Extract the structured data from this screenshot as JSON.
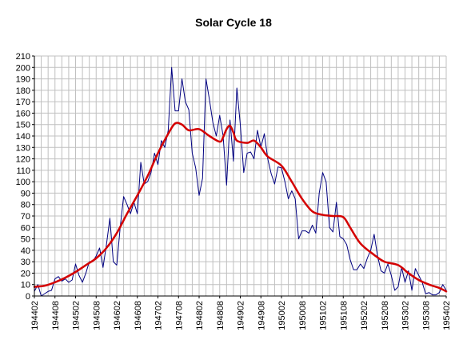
{
  "chart_data": {
    "type": "line",
    "title": "Solar Cycle 18",
    "xlabel": "",
    "ylabel": "",
    "ylim": [
      0,
      210
    ],
    "y_ticks": [
      0,
      10,
      20,
      30,
      40,
      50,
      60,
      70,
      80,
      90,
      100,
      110,
      120,
      130,
      140,
      150,
      160,
      170,
      180,
      190,
      200,
      210
    ],
    "x_ticks": [
      "194402",
      "194408",
      "194502",
      "194508",
      "194602",
      "194608",
      "194702",
      "194708",
      "194802",
      "194808",
      "194902",
      "194908",
      "195002",
      "195008",
      "195102",
      "195108",
      "195202",
      "195208",
      "195302",
      "195308",
      "195402"
    ],
    "grid": "on",
    "legend": "none",
    "colors": {
      "monthly": "#000080",
      "smoothed": "#d40000",
      "grid": "#c0c0c0"
    },
    "series": [
      {
        "key": "monthly",
        "points": [
          [
            "194402",
            4
          ],
          [
            "194403",
            10
          ],
          [
            "194404",
            0
          ],
          [
            "194405",
            2
          ],
          [
            "194406",
            4
          ],
          [
            "194407",
            5
          ],
          [
            "194408",
            15
          ],
          [
            "194409",
            17
          ],
          [
            "194410",
            13
          ],
          [
            "194411",
            15
          ],
          [
            "194412",
            12
          ],
          [
            "194501",
            14
          ],
          [
            "194502",
            28
          ],
          [
            "194503",
            18
          ],
          [
            "194504",
            12
          ],
          [
            "194505",
            20
          ],
          [
            "194506",
            30
          ],
          [
            "194507",
            30
          ],
          [
            "194508",
            35
          ],
          [
            "194509",
            42
          ],
          [
            "194510",
            25
          ],
          [
            "194511",
            45
          ],
          [
            "194512",
            68
          ],
          [
            "194601",
            30
          ],
          [
            "194602",
            27
          ],
          [
            "194603",
            60
          ],
          [
            "194604",
            87
          ],
          [
            "194605",
            80
          ],
          [
            "194606",
            72
          ],
          [
            "194607",
            82
          ],
          [
            "194608",
            72
          ],
          [
            "194609",
            117
          ],
          [
            "194610",
            98
          ],
          [
            "194611",
            100
          ],
          [
            "194612",
            108
          ],
          [
            "194701",
            125
          ],
          [
            "194702",
            115
          ],
          [
            "194703",
            136
          ],
          [
            "194704",
            130
          ],
          [
            "194705",
            145
          ],
          [
            "194706",
            200
          ],
          [
            "194707",
            162
          ],
          [
            "194708",
            162
          ],
          [
            "194709",
            190
          ],
          [
            "194710",
            170
          ],
          [
            "194711",
            163
          ],
          [
            "194712",
            125
          ],
          [
            "194801",
            112
          ],
          [
            "194802",
            88
          ],
          [
            "194803",
            103
          ],
          [
            "194804",
            190
          ],
          [
            "194805",
            172
          ],
          [
            "194806",
            152
          ],
          [
            "194807",
            140
          ],
          [
            "194808",
            158
          ],
          [
            "194809",
            140
          ],
          [
            "194810",
            97
          ],
          [
            "194811",
            154
          ],
          [
            "194812",
            118
          ],
          [
            "194901",
            182
          ],
          [
            "194902",
            150
          ],
          [
            "194903",
            108
          ],
          [
            "194904",
            125
          ],
          [
            "194905",
            126
          ],
          [
            "194906",
            120
          ],
          [
            "194907",
            145
          ],
          [
            "194908",
            130
          ],
          [
            "194909",
            142
          ],
          [
            "194910",
            120
          ],
          [
            "194911",
            107
          ],
          [
            "194912",
            98
          ],
          [
            "195001",
            113
          ],
          [
            "195002",
            112
          ],
          [
            "195003",
            100
          ],
          [
            "195004",
            85
          ],
          [
            "195005",
            92
          ],
          [
            "195006",
            85
          ],
          [
            "195007",
            50
          ],
          [
            "195008",
            57
          ],
          [
            "195009",
            57
          ],
          [
            "195010",
            55
          ],
          [
            "195011",
            62
          ],
          [
            "195012",
            55
          ],
          [
            "195101",
            90
          ],
          [
            "195102",
            108
          ],
          [
            "195103",
            100
          ],
          [
            "195104",
            60
          ],
          [
            "195105",
            56
          ],
          [
            "195106",
            82
          ],
          [
            "195107",
            52
          ],
          [
            "195108",
            50
          ],
          [
            "195109",
            45
          ],
          [
            "195110",
            32
          ],
          [
            "195111",
            23
          ],
          [
            "195112",
            23
          ],
          [
            "195201",
            28
          ],
          [
            "195202",
            24
          ],
          [
            "195203",
            33
          ],
          [
            "195204",
            40
          ],
          [
            "195205",
            54
          ],
          [
            "195206",
            35
          ],
          [
            "195207",
            22
          ],
          [
            "195208",
            20
          ],
          [
            "195209",
            28
          ],
          [
            "195210",
            18
          ],
          [
            "195211",
            5
          ],
          [
            "195212",
            8
          ],
          [
            "195301",
            25
          ],
          [
            "195302",
            12
          ],
          [
            "195303",
            22
          ],
          [
            "195304",
            5
          ],
          [
            "195305",
            24
          ],
          [
            "195306",
            18
          ],
          [
            "195307",
            12
          ],
          [
            "195308",
            2
          ],
          [
            "195309",
            3
          ],
          [
            "195310",
            1
          ],
          [
            "195311",
            1
          ],
          [
            "195312",
            3
          ],
          [
            "195401",
            10
          ],
          [
            "195402",
            5
          ]
        ]
      },
      {
        "key": "smoothed",
        "points": [
          [
            "194402",
            8
          ],
          [
            "194405",
            9
          ],
          [
            "194408",
            12
          ],
          [
            "194411",
            16
          ],
          [
            "194502",
            21
          ],
          [
            "194505",
            27
          ],
          [
            "194508",
            33
          ],
          [
            "194511",
            42
          ],
          [
            "194602",
            55
          ],
          [
            "194605",
            72
          ],
          [
            "194608",
            88
          ],
          [
            "194611",
            105
          ],
          [
            "194702",
            125
          ],
          [
            "194705",
            142
          ],
          [
            "194707",
            151
          ],
          [
            "194709",
            150
          ],
          [
            "194711",
            145
          ],
          [
            "194802",
            146
          ],
          [
            "194805",
            140
          ],
          [
            "194808",
            135
          ],
          [
            "194809",
            139
          ],
          [
            "194810",
            146
          ],
          [
            "194811",
            149
          ],
          [
            "194812",
            143
          ],
          [
            "194901",
            136
          ],
          [
            "194904",
            134
          ],
          [
            "194906",
            136
          ],
          [
            "194908",
            130
          ],
          [
            "194910",
            122
          ],
          [
            "195002",
            114
          ],
          [
            "195005",
            100
          ],
          [
            "195008",
            85
          ],
          [
            "195011",
            74
          ],
          [
            "195102",
            71
          ],
          [
            "195105",
            70
          ],
          [
            "195108",
            69
          ],
          [
            "195110",
            60
          ],
          [
            "195201",
            46
          ],
          [
            "195205",
            36
          ],
          [
            "195208",
            30
          ],
          [
            "195212",
            27
          ],
          [
            "195303",
            20
          ],
          [
            "195306",
            14
          ],
          [
            "195309",
            10
          ],
          [
            "195312",
            7
          ],
          [
            "195402",
            4
          ]
        ]
      }
    ]
  }
}
